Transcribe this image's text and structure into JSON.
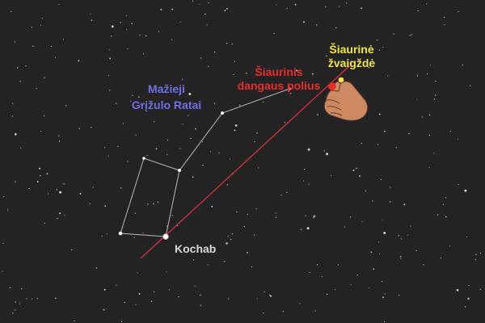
{
  "labels": {
    "constellation_line1": "Mažieji",
    "constellation_line2": "Grįžulo Ratai",
    "pole_line1": "Šiaurinis",
    "pole_line2": "dangaus polius",
    "polaris_line1": "Šiaurinė",
    "polaris_line2": "žvaigždė",
    "kochab": "Kochab"
  },
  "colors": {
    "background": "#232323",
    "constellation_label": "#6f6fe8",
    "pole_label": "#ee2b2b",
    "polaris_label": "#f5e642",
    "kochab_label": "#d8d8d8",
    "pointer_line": "#e03048",
    "constellation_lines": "#b8b8b8",
    "hand": "#cd8a62"
  },
  "icons": {
    "pointer": "pointing-hand-icon",
    "pole_marker": "red-dot-icon",
    "polaris_marker": "yellow-star-icon"
  }
}
